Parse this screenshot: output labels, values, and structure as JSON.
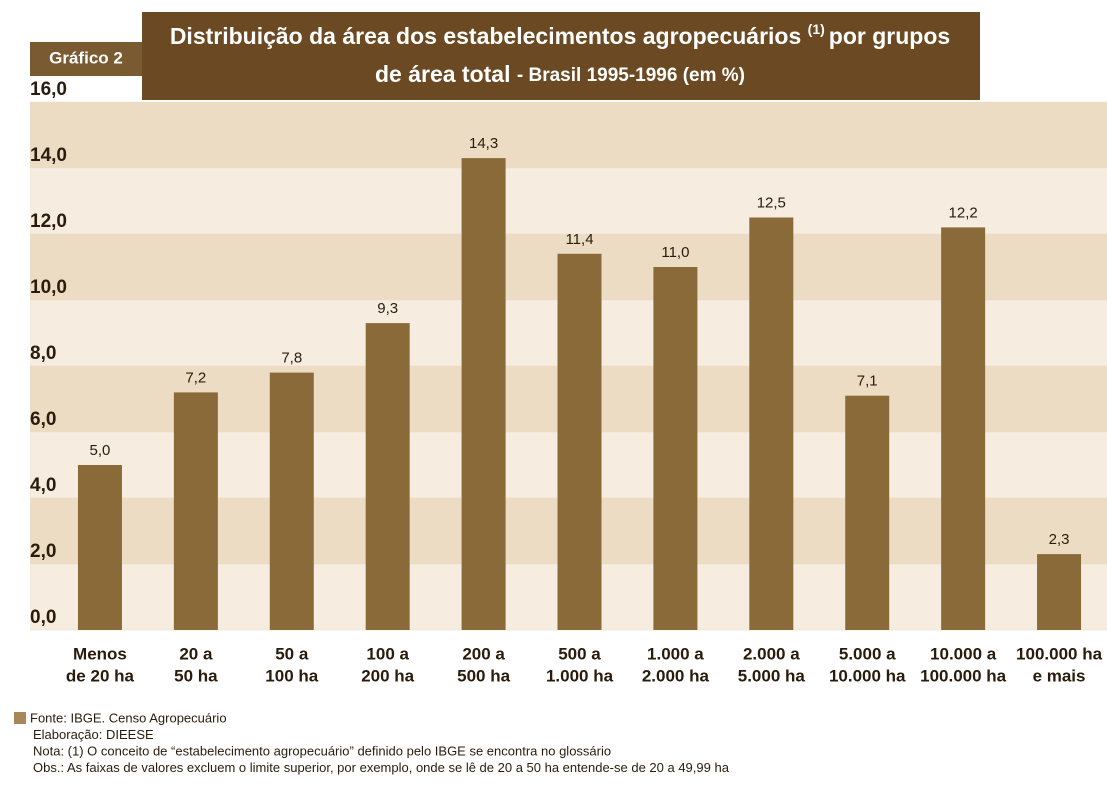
{
  "chart_data": {
    "type": "bar",
    "label": "Gráfico 2",
    "title": {
      "line1": "Distribuição da área dos estabelecimentos agropecuários",
      "superscript": "(1)",
      "line1_end": "por grupos",
      "line2": "de área total",
      "line2_end": "- Brasil 1995-1996 (em %)"
    },
    "categories": [
      [
        "Menos",
        "de 20 ha"
      ],
      [
        "20 a",
        "50 ha"
      ],
      [
        "50 a",
        "100 ha"
      ],
      [
        "100 a",
        "200 ha"
      ],
      [
        "200 a",
        "500 ha"
      ],
      [
        "500 a",
        "1.000 ha"
      ],
      [
        "1.000 a",
        "2.000 ha"
      ],
      [
        "2.000 a",
        "5.000 ha"
      ],
      [
        "5.000 a",
        "10.000 ha"
      ],
      [
        "10.000 a",
        "100.000 ha"
      ],
      [
        "100.000 ha",
        "e mais"
      ]
    ],
    "values": [
      5.0,
      7.2,
      7.8,
      9.3,
      14.3,
      11.4,
      11.0,
      12.5,
      7.1,
      12.2,
      2.3
    ],
    "value_labels": [
      "5,0",
      "7,2",
      "7,8",
      "9,3",
      "14,3",
      "11,4",
      "11,0",
      "12,5",
      "7,1",
      "12,2",
      "2,3"
    ],
    "color": "#8b6a3a",
    "ylim": [
      0,
      16
    ],
    "yticks": [
      {
        "value": 0,
        "label": "0,0"
      },
      {
        "value": 2,
        "label": "2,0"
      },
      {
        "value": 4,
        "label": "4,0"
      },
      {
        "value": 6,
        "label": "6,0"
      },
      {
        "value": 8,
        "label": "8,0"
      },
      {
        "value": 10,
        "label": "10,0"
      },
      {
        "value": 12,
        "label": "12,0"
      },
      {
        "value": 14,
        "label": "14,0"
      },
      {
        "value": 16,
        "label": "16,0"
      }
    ],
    "grid": true,
    "notes": [
      "Fonte: IBGE. Censo Agropecuário",
      "Elaboração: DIEESE",
      "Nota: (1) O conceito de “estabelecimento agropecuário” definido pelo IBGE se encontra no glossário",
      "Obs.: As faixas de valores excluem o limite superior, por exemplo, onde se lê de 20 a 50 ha entende-se de 20 a 49,99 ha"
    ]
  }
}
